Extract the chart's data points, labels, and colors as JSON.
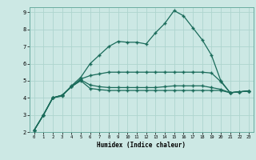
{
  "xlabel": "Humidex (Indice chaleur)",
  "bg_color": "#cce8e4",
  "line_color": "#1a6b5a",
  "grid_color": "#aed4ce",
  "xlim": [
    -0.5,
    23.5
  ],
  "ylim": [
    2,
    9.3
  ],
  "xticks": [
    0,
    1,
    2,
    3,
    4,
    5,
    6,
    7,
    8,
    9,
    10,
    11,
    12,
    13,
    14,
    15,
    16,
    17,
    18,
    19,
    20,
    21,
    22,
    23
  ],
  "yticks": [
    2,
    3,
    4,
    5,
    6,
    7,
    8,
    9
  ],
  "line1_x": [
    0,
    1,
    2,
    3,
    4,
    5,
    6,
    7,
    8,
    9,
    10,
    11,
    12,
    13,
    14,
    15,
    16,
    17,
    18,
    19,
    20,
    21,
    22,
    23
  ],
  "line1_y": [
    2.1,
    3.0,
    4.0,
    4.1,
    4.7,
    5.2,
    6.0,
    6.5,
    7.0,
    7.3,
    7.25,
    7.25,
    7.15,
    7.8,
    8.35,
    9.1,
    8.8,
    8.1,
    7.4,
    6.5,
    5.0,
    4.3,
    4.35,
    4.4
  ],
  "line2_x": [
    0,
    1,
    2,
    3,
    4,
    5,
    6,
    7,
    8,
    9,
    10,
    11,
    12,
    13,
    14,
    15,
    16,
    17,
    18,
    19,
    20,
    21,
    22,
    23
  ],
  "line2_y": [
    2.1,
    3.0,
    4.0,
    4.15,
    4.65,
    5.1,
    5.3,
    5.4,
    5.5,
    5.5,
    5.5,
    5.5,
    5.5,
    5.5,
    5.5,
    5.5,
    5.5,
    5.5,
    5.5,
    5.45,
    4.95,
    4.3,
    4.35,
    4.4
  ],
  "line3_x": [
    0,
    1,
    2,
    3,
    4,
    5,
    6,
    7,
    8,
    9,
    10,
    11,
    12,
    13,
    14,
    15,
    16,
    17,
    18,
    19,
    20,
    21,
    22,
    23
  ],
  "line3_y": [
    2.1,
    3.0,
    4.0,
    4.15,
    4.65,
    5.05,
    4.75,
    4.65,
    4.6,
    4.6,
    4.6,
    4.6,
    4.6,
    4.6,
    4.65,
    4.7,
    4.7,
    4.7,
    4.7,
    4.6,
    4.5,
    4.3,
    4.35,
    4.4
  ],
  "line4_x": [
    0,
    1,
    2,
    3,
    4,
    5,
    6,
    7,
    8,
    9,
    10,
    11,
    12,
    13,
    14,
    15,
    16,
    17,
    18,
    19,
    20,
    21,
    22,
    23
  ],
  "line4_y": [
    2.1,
    3.0,
    4.0,
    4.15,
    4.65,
    5.0,
    4.55,
    4.48,
    4.43,
    4.43,
    4.43,
    4.43,
    4.43,
    4.43,
    4.43,
    4.43,
    4.43,
    4.43,
    4.43,
    4.43,
    4.43,
    4.3,
    4.35,
    4.4
  ],
  "marker": "+"
}
